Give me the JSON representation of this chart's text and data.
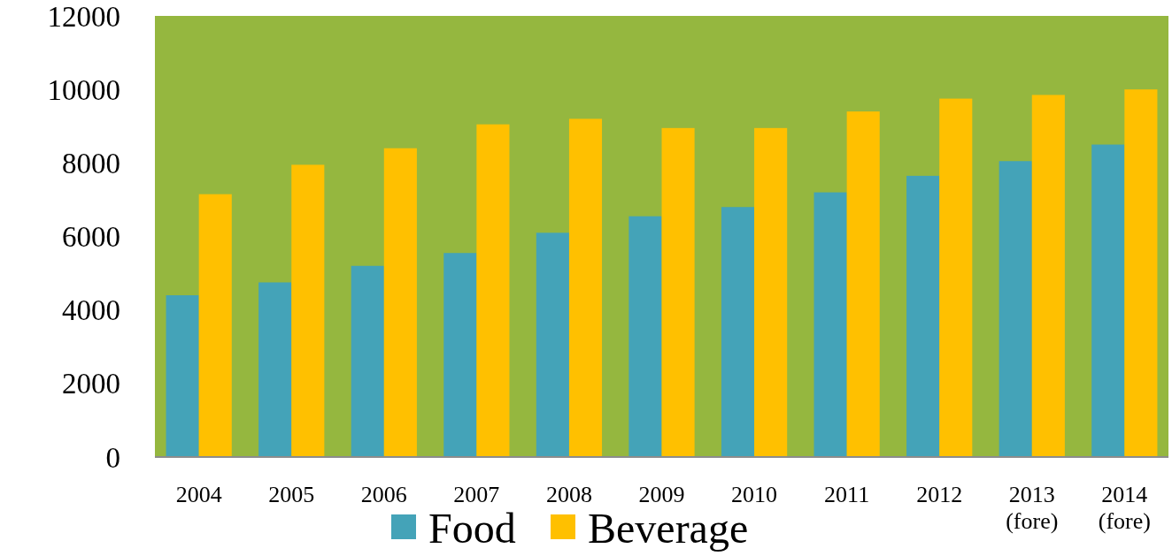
{
  "chart_data": {
    "type": "bar",
    "categories": [
      "2004",
      "2005",
      "2006",
      "2007",
      "2008",
      "2009",
      "2010",
      "2011",
      "2012",
      "2013 (fore)",
      "2014 (fore)"
    ],
    "series": [
      {
        "name": "Food",
        "color": "#44a3b8",
        "values": [
          4400,
          4750,
          5200,
          5550,
          6100,
          6550,
          6800,
          7200,
          7650,
          8050,
          8500
        ]
      },
      {
        "name": "Beverage",
        "color": "#ffc000",
        "values": [
          7150,
          7950,
          8400,
          9050,
          9200,
          8950,
          8950,
          9400,
          9750,
          9850,
          10000
        ]
      }
    ],
    "ylim": [
      0,
      12000
    ],
    "yticks": [
      0,
      2000,
      4000,
      6000,
      8000,
      10000,
      12000
    ],
    "grid": false,
    "legend": "bottom"
  }
}
